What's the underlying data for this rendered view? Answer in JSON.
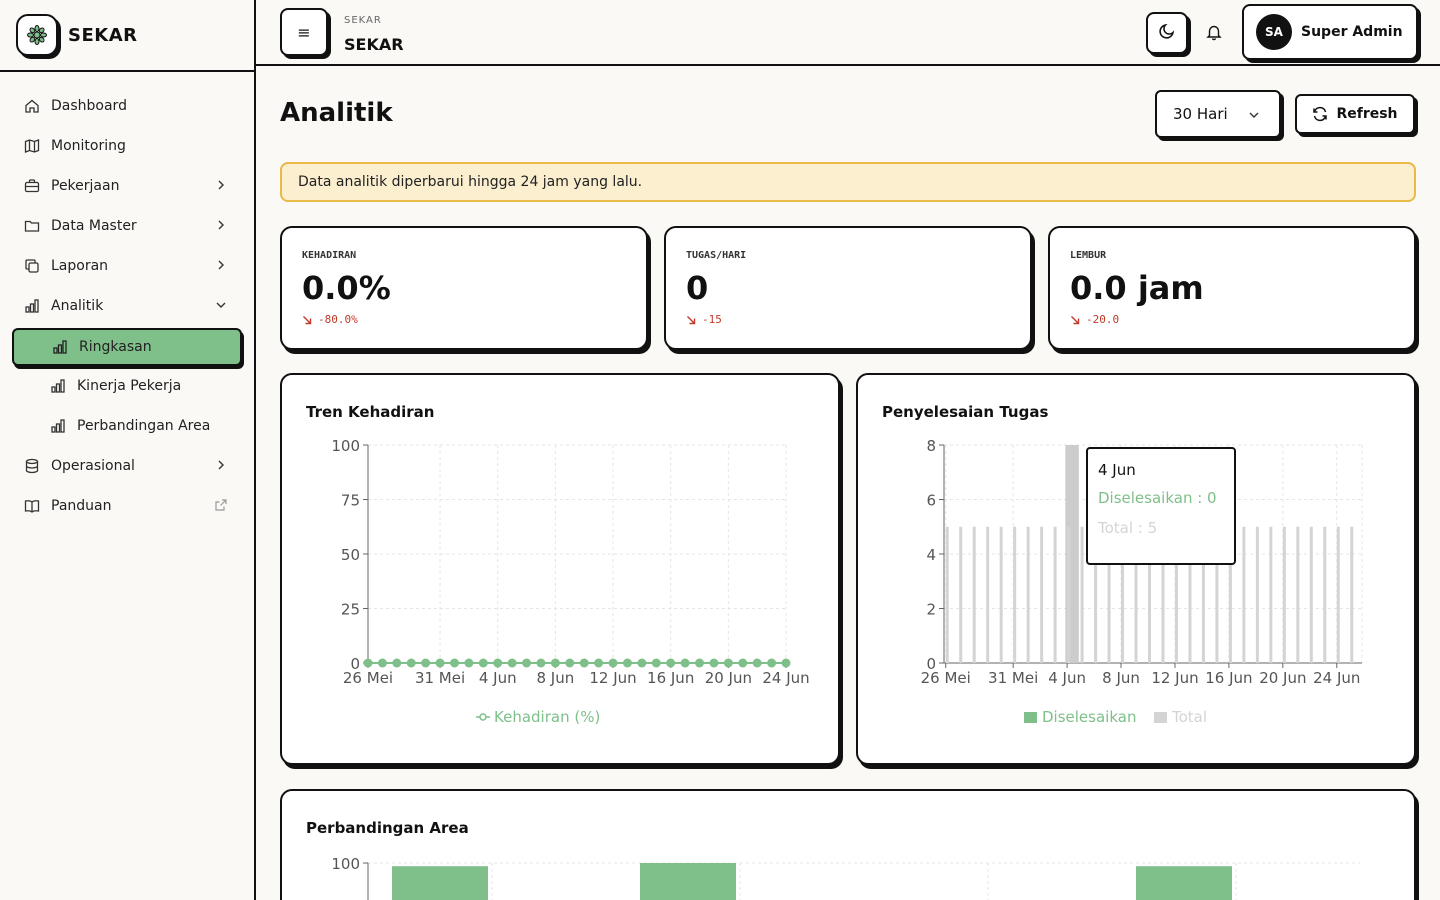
{
  "brand": {
    "name": "SEKAR"
  },
  "sidebar": {
    "items": [
      {
        "label": "Dashboard"
      },
      {
        "label": "Monitoring"
      },
      {
        "label": "Pekerjaan"
      },
      {
        "label": "Data Master"
      },
      {
        "label": "Laporan"
      },
      {
        "label": "Analitik"
      },
      {
        "label": "Operasional"
      },
      {
        "label": "Panduan"
      }
    ],
    "analitik_sub": [
      {
        "label": "Ringkasan"
      },
      {
        "label": "Kinerja Pekerja"
      },
      {
        "label": "Perbandingan Area"
      }
    ]
  },
  "header": {
    "small": "SEKAR",
    "title": "SEKAR",
    "menu_glyph": "≡",
    "avatar_initials": "SA",
    "user_name": "Super Admin"
  },
  "main": {
    "title": "Analitik",
    "range_value": "30 Hari",
    "refresh_label": "Refresh",
    "notice": "Data analitik diperbarui hingga 24 jam yang lalu."
  },
  "stats": [
    {
      "label": "KEHADIRAN",
      "value": "0.0%",
      "delta": "-80.0%"
    },
    {
      "label": "TUGAS/HARI",
      "value": "0",
      "delta": "-15"
    },
    {
      "label": "LEMBUR",
      "value": "0.0 jam",
      "delta": "-20.0"
    }
  ],
  "colors": {
    "accent": "#7fbf8a",
    "total": "#d4d4d4",
    "notice_bg": "#fbefcf",
    "notice_border": "#e9b949",
    "negative": "#c0392b"
  },
  "chart_data": [
    {
      "type": "line",
      "title": "Tren Kehadiran",
      "x_ticks": [
        "26 Mei",
        "31 Mei",
        "4 Jun",
        "8 Jun",
        "12 Jun",
        "16 Jun",
        "20 Jun",
        "24 Jun"
      ],
      "x_range": [
        "26 Mei",
        "24 Jun"
      ],
      "ylim": [
        0,
        100
      ],
      "y_ticks": [
        0,
        25,
        50,
        75,
        100
      ],
      "grid": true,
      "legend_position": "bottom",
      "series": [
        {
          "name": "Kehadiran (%)",
          "color": "#7fbf8a",
          "values": [
            0,
            0,
            0,
            0,
            0,
            0,
            0,
            0,
            0,
            0,
            0,
            0,
            0,
            0,
            0,
            0,
            0,
            0,
            0,
            0,
            0,
            0,
            0,
            0,
            0,
            0,
            0,
            0,
            0,
            0
          ]
        }
      ]
    },
    {
      "type": "bar",
      "title": "Penyelesaian Tugas",
      "x_ticks": [
        "26 Mei",
        "31 Mei",
        "4 Jun",
        "8 Jun",
        "12 Jun",
        "16 Jun",
        "20 Jun",
        "24 Jun"
      ],
      "x_range": [
        "26 Mei",
        "25 Jun"
      ],
      "ylim": [
        0,
        8
      ],
      "y_ticks": [
        0,
        2,
        4,
        6,
        8
      ],
      "grid": true,
      "legend_position": "bottom",
      "highlight_category": "4 Jun",
      "series": [
        {
          "name": "Diselesaikan",
          "color": "#7fbf8a",
          "values": [
            0,
            0,
            0,
            0,
            0,
            0,
            0,
            0,
            0,
            0,
            0,
            0,
            0,
            0,
            0,
            0,
            0,
            0,
            0,
            0,
            0,
            0,
            0,
            0,
            0,
            0,
            0,
            0,
            0,
            0,
            0
          ]
        },
        {
          "name": "Total",
          "color": "#d4d4d4",
          "values": [
            5,
            5,
            5,
            5,
            5,
            5,
            5,
            5,
            5,
            5,
            5,
            5,
            5,
            5,
            5,
            5,
            5,
            5,
            5,
            5,
            5,
            5,
            5,
            5,
            5,
            5,
            5,
            5,
            5,
            5,
            5
          ]
        }
      ],
      "tooltip": {
        "title": "4 Jun",
        "row1": "Diselesaikan : 0",
        "row2": "Total : 5"
      }
    },
    {
      "type": "bar",
      "title": "Perbandingan Area",
      "y_ticks": [
        100
      ],
      "ylim": [
        0,
        100
      ],
      "grid": true,
      "series": [
        {
          "name": "",
          "color": "#7fbf8a",
          "values": [
            99,
            100,
            99
          ]
        }
      ]
    }
  ]
}
